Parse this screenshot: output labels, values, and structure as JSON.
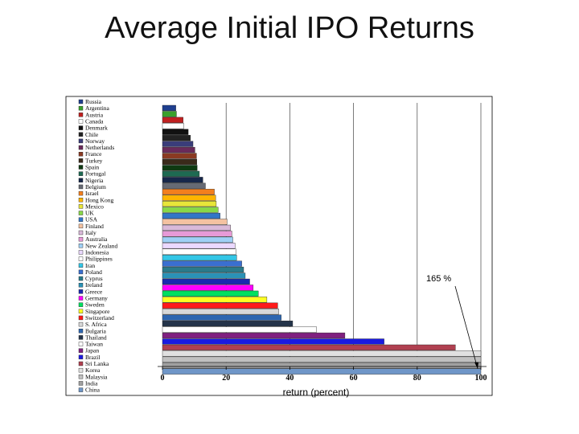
{
  "slide": {
    "title": "Average Initial IPO Returns"
  },
  "chart_data": {
    "type": "bar",
    "orientation": "horizontal",
    "title": "",
    "xlabel": "return (percent)",
    "ylabel": "",
    "xlim": [
      0,
      100
    ],
    "xticks": [
      0,
      20,
      40,
      60,
      80,
      100
    ],
    "grid": "vertical",
    "legend": "left",
    "annotation": {
      "text": "165 %",
      "points_to": "China"
    },
    "categories": [
      "Russia",
      "Argentina",
      "Austria",
      "Canada",
      "Denmark",
      "Chile",
      "Norway",
      "Netherlands",
      "France",
      "Turkey",
      "Spain",
      "Portugal",
      "Nigeria",
      "Belgium",
      "Israel",
      "Hong Kong",
      "Mexico",
      "UK",
      "USA",
      "Finland",
      "Italy",
      "Australia",
      "New Zealand",
      "Indonesia",
      "Philippines",
      "Iran",
      "Poland",
      "Cyprus",
      "Ireland",
      "Greece",
      "Germany",
      "Sweden",
      "Singapore",
      "Switzerland",
      "S. Africa",
      "Bulgaria",
      "Thailand",
      "Taiwan",
      "Japan",
      "Brazil",
      "Sri Lanka",
      "Korea",
      "Malaysia",
      "India",
      "China"
    ],
    "values": [
      4.2,
      4.4,
      6.5,
      6.7,
      8.1,
      8.8,
      9.6,
      10.2,
      10.7,
      10.8,
      10.9,
      11.6,
      12.7,
      13.5,
      16.3,
      16.7,
      16.9,
      17.5,
      18.1,
      20.3,
      21.4,
      21.8,
      22.1,
      22.8,
      23.1,
      23.3,
      24.9,
      25.5,
      26.0,
      27.4,
      28.5,
      30.1,
      32.8,
      36.2,
      36.5,
      37.3,
      40.9,
      48.4,
      57.3,
      69.6,
      92.0,
      100.0,
      100.0,
      100.0,
      100.0
    ],
    "colors": [
      "#1f3f8f",
      "#3aa02c",
      "#c02020",
      "#ffffff",
      "#111111",
      "#222222",
      "#3a3d7a",
      "#6a2a5a",
      "#8a3a22",
      "#3a2a1a",
      "#0e3a12",
      "#1e6a52",
      "#17274a",
      "#666a74",
      "#f37f1e",
      "#ffb400",
      "#e8e63a",
      "#88d848",
      "#3276c8",
      "#f4c2a1",
      "#d9b9d9",
      "#e79ad7",
      "#9fd0f5",
      "#ead8ff",
      "#ffffff",
      "#33c6e6",
      "#3a6fd0",
      "#2a7a8a",
      "#2a92b6",
      "#1a2ab0",
      "#ff00ff",
      "#00e060",
      "#ffff22",
      "#ff1a1a",
      "#d8d8d8",
      "#2e66b0",
      "#24344a",
      "#ffffff",
      "#802080",
      "#1a1ae0",
      "#b04050",
      "#e0e0e0",
      "#c0c0c0",
      "#a0a0a0",
      "#6f96c8"
    ]
  }
}
